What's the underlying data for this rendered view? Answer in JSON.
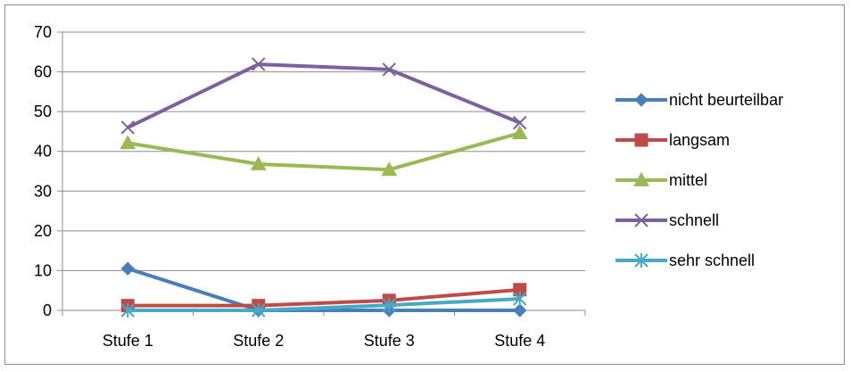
{
  "chart_data": {
    "type": "line",
    "categories": [
      "Stufe 1",
      "Stufe 2",
      "Stufe 3",
      "Stufe 4"
    ],
    "ylim": [
      0,
      70
    ],
    "yticks": [
      0,
      10,
      20,
      30,
      40,
      50,
      60,
      70
    ],
    "grid": true,
    "legend_position": "right",
    "series": [
      {
        "name": "nicht beurteilbar",
        "values": [
          10.5,
          0,
          0,
          0
        ],
        "color": "#4a7ebb",
        "marker": "diamond"
      },
      {
        "name": "langsam",
        "values": [
          1.2,
          1.2,
          2.5,
          5.2
        ],
        "color": "#be4b48",
        "marker": "square"
      },
      {
        "name": "mittel",
        "values": [
          42.1,
          36.8,
          35.4,
          44.6
        ],
        "color": "#98b954",
        "marker": "triangle"
      },
      {
        "name": "schnell",
        "values": [
          46,
          61.9,
          60.6,
          47.2
        ],
        "color": "#7d60a0",
        "marker": "x"
      },
      {
        "name": "sehr schnell",
        "values": [
          0,
          0,
          1.3,
          2.9
        ],
        "color": "#46aac5",
        "marker": "star"
      }
    ]
  }
}
